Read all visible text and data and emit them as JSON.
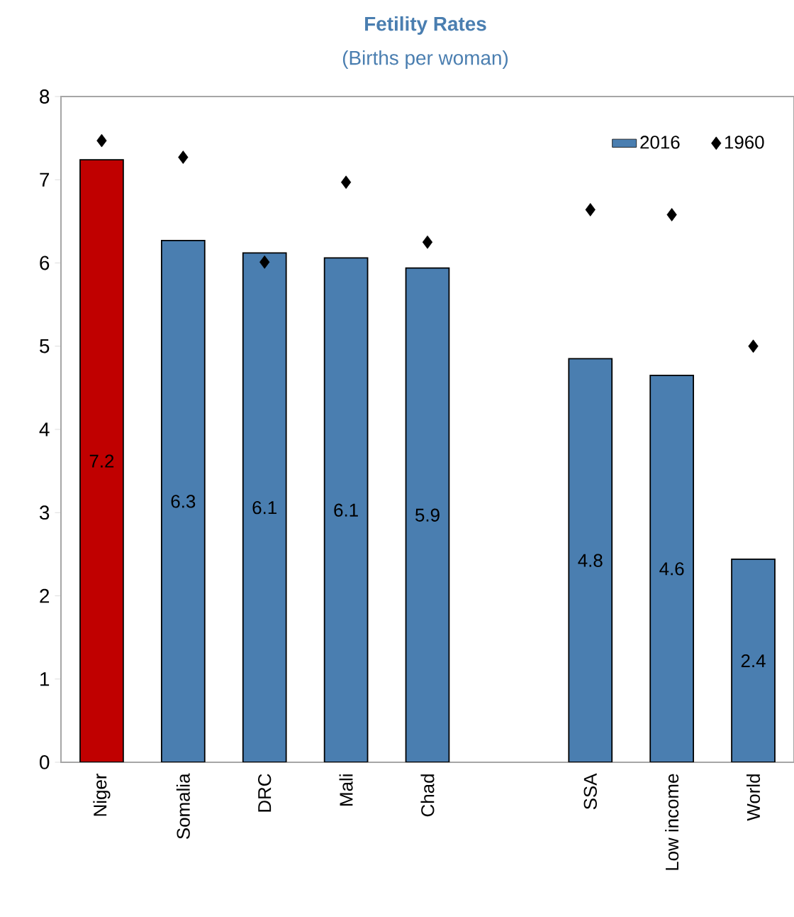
{
  "chart_data": {
    "type": "bar",
    "title": "Fetility Rates",
    "subtitle": "(Births per woman)",
    "categories": [
      "Niger",
      "Somalia",
      "DRC",
      "Mali",
      "Chad",
      null,
      "SSA",
      "Low income",
      "World"
    ],
    "series": [
      {
        "name": "2016",
        "color": "#4a7eb0",
        "colors": [
          "#c00000",
          "#4a7eb0",
          "#4a7eb0",
          "#4a7eb0",
          "#4a7eb0",
          null,
          "#4a7eb0",
          "#4a7eb0",
          "#4a7eb0"
        ],
        "values": [
          7.24,
          6.27,
          6.12,
          6.06,
          5.94,
          null,
          4.85,
          4.65,
          2.44
        ],
        "value_labels": [
          "7.2",
          "6.3",
          "6.1",
          "6.1",
          "5.9",
          null,
          "4.8",
          "4.6",
          "2.4"
        ]
      },
      {
        "name": "1960",
        "type": "scatter",
        "color": "#000000",
        "marker": "diamond",
        "values": [
          7.47,
          7.27,
          6.01,
          6.97,
          6.25,
          null,
          6.64,
          6.58,
          5.0
        ]
      }
    ],
    "ylim": [
      0,
      8
    ],
    "yticks": [
      0,
      1,
      2,
      3,
      4,
      5,
      6,
      7,
      8
    ],
    "legend": "top right"
  }
}
